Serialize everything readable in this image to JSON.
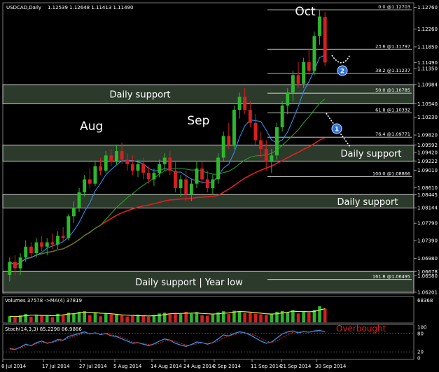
{
  "header": {
    "symbol_timeframe": "USDCAD,Daily",
    "ohlc": "1.12539 1.12648 1.11413 1.11490"
  },
  "colors": {
    "background": "#000000",
    "bull": "#2db82d",
    "bear": "#d62020",
    "zone_fill": "#2c3a2c",
    "zone_border": "#c9c9c9",
    "ma_slow": "#e02020",
    "ma_mid": "#22a022",
    "ma_fast": "#2f8fe8",
    "stoch_main": "#3d8ee8",
    "stoch_signal": "#e02020",
    "overbought": "#e02020",
    "grid": "#333333"
  },
  "chart_data": [
    {
      "type": "candlestick",
      "title": "",
      "ylim": [
        1.062,
        1.128
      ],
      "price_ticks": [
        "1.12760",
        "1.12260",
        "1.11850",
        "1.11490",
        "1.11350",
        "1.10984",
        "1.10540",
        "1.10230",
        "1.09820",
        "1.09592",
        "1.09420",
        "1.09222",
        "1.09010",
        "1.08610",
        "1.08445",
        "1.08144",
        "1.07790",
        "1.07390",
        "1.06980",
        "1.06678",
        "1.06580",
        "1.06201"
      ],
      "date_ticks": [
        "8 Jul 2014",
        "17 Jul 2014",
        "27 Jul 2014",
        "5 Aug 2014",
        "14 Aug 2014",
        "24 Aug 2014",
        "2 Sep 2014",
        "11 Sep 2014",
        "21 Sep 2014",
        "30 Sep 2014"
      ],
      "candles": [
        [
          1.066,
          1.07,
          1.0645,
          1.069
        ],
        [
          1.069,
          1.0705,
          1.066,
          1.0675
        ],
        [
          1.0675,
          1.071,
          1.066,
          1.07
        ],
        [
          1.07,
          1.074,
          1.069,
          1.0725
        ],
        [
          1.0725,
          1.0735,
          1.07,
          1.071
        ],
        [
          1.071,
          1.0745,
          1.07,
          1.0735
        ],
        [
          1.0735,
          1.075,
          1.0715,
          1.0725
        ],
        [
          1.0725,
          1.0745,
          1.0705,
          1.0735
        ],
        [
          1.0735,
          1.0755,
          1.072,
          1.073
        ],
        [
          1.073,
          1.076,
          1.072,
          1.075
        ],
        [
          1.075,
          1.077,
          1.0735,
          1.0745
        ],
        [
          1.0745,
          1.08,
          1.074,
          1.0795
        ],
        [
          1.0795,
          1.083,
          1.078,
          1.0815
        ],
        [
          1.0815,
          1.086,
          1.0805,
          1.085
        ],
        [
          1.085,
          1.089,
          1.084,
          1.088
        ],
        [
          1.088,
          1.0905,
          1.086,
          1.087
        ],
        [
          1.087,
          1.092,
          1.0865,
          1.091
        ],
        [
          1.091,
          1.093,
          1.089,
          1.09
        ],
        [
          1.09,
          1.0945,
          1.0895,
          1.0935
        ],
        [
          1.0935,
          1.095,
          1.091,
          1.092
        ],
        [
          1.092,
          1.096,
          1.0915,
          1.0945
        ],
        [
          1.0945,
          1.0965,
          1.0915,
          1.0925
        ],
        [
          1.0925,
          1.094,
          1.09,
          1.0915
        ],
        [
          1.0915,
          1.0935,
          1.089,
          1.09
        ],
        [
          1.09,
          1.0925,
          1.0885,
          1.0915
        ],
        [
          1.0915,
          1.093,
          1.088,
          1.0895
        ],
        [
          1.0895,
          1.091,
          1.087,
          1.088
        ],
        [
          1.088,
          1.0905,
          1.0865,
          1.0895
        ],
        [
          1.0895,
          1.0925,
          1.0885,
          1.0915
        ],
        [
          1.0915,
          1.094,
          1.09,
          1.093
        ],
        [
          1.093,
          1.0945,
          1.089,
          1.09
        ],
        [
          1.09,
          1.092,
          1.085,
          1.086
        ],
        [
          1.086,
          1.089,
          1.084,
          1.088
        ],
        [
          1.088,
          1.09,
          1.083,
          1.0845
        ],
        [
          1.0845,
          1.088,
          1.083,
          1.087
        ],
        [
          1.087,
          1.092,
          1.086,
          1.0905
        ],
        [
          1.0905,
          1.092,
          1.087,
          1.088
        ],
        [
          1.088,
          1.09,
          1.085,
          1.086
        ],
        [
          1.086,
          1.089,
          1.0845,
          1.088
        ],
        [
          1.088,
          1.094,
          1.087,
          1.093
        ],
        [
          1.093,
          1.099,
          1.092,
          1.098
        ],
        [
          1.098,
          1.101,
          1.095,
          1.096
        ],
        [
          1.096,
          1.105,
          1.095,
          1.104
        ],
        [
          1.104,
          1.108,
          1.102,
          1.107
        ],
        [
          1.107,
          1.109,
          1.103,
          1.104
        ],
        [
          1.104,
          1.106,
          1.1,
          1.101
        ],
        [
          1.101,
          1.103,
          1.096,
          1.097
        ],
        [
          1.097,
          1.099,
          1.093,
          1.095
        ],
        [
          1.095,
          1.097,
          1.09,
          1.092
        ],
        [
          1.092,
          1.095,
          1.0895,
          1.0935
        ],
        [
          1.0935,
          1.101,
          1.0925,
          1.1
        ],
        [
          1.1,
          1.106,
          1.099,
          1.105
        ],
        [
          1.105,
          1.109,
          1.103,
          1.108
        ],
        [
          1.108,
          1.113,
          1.106,
          1.112
        ],
        [
          1.112,
          1.115,
          1.109,
          1.11
        ],
        [
          1.11,
          1.116,
          1.109,
          1.115
        ],
        [
          1.115,
          1.118,
          1.112,
          1.113
        ],
        [
          1.113,
          1.122,
          1.112,
          1.121
        ],
        [
          1.121,
          1.127,
          1.119,
          1.1255
        ],
        [
          1.1254,
          1.1265,
          1.1141,
          1.1149
        ]
      ],
      "moving_averages": [
        {
          "label": "slow",
          "color_key": "ma_slow"
        },
        {
          "label": "mid",
          "color_key": "ma_mid"
        },
        {
          "label": "fast",
          "color_key": "ma_fast"
        }
      ],
      "fib_levels": [
        {
          "label": "0.0 @1.12703",
          "value": 1.12703
        },
        {
          "label": "23.6 @1.11797",
          "value": 1.11797
        },
        {
          "label": "38.2 @1.11237",
          "value": 1.11237
        },
        {
          "label": "50.0 @1.10785",
          "value": 1.10785
        },
        {
          "label": "61.8 @1.10332",
          "value": 1.10332
        },
        {
          "label": "76.4 @1.09771",
          "value": 1.09771
        },
        {
          "label": "100.0 @1.08866",
          "value": 1.08866
        },
        {
          "label": "161.8 @1.06495",
          "value": 1.06495
        }
      ],
      "zones": [
        {
          "label": "Daily support",
          "high": 1.1098,
          "low": 1.1054
        },
        {
          "label": "Daily support",
          "high": 1.0959,
          "low": 1.0922
        },
        {
          "label": "Daily support",
          "high": 1.0845,
          "low": 1.0814
        },
        {
          "label": "Daily support | Year low",
          "high": 1.0668,
          "low": 1.062
        }
      ],
      "month_labels": [
        {
          "label": "Aug",
          "index": 14
        },
        {
          "label": "Sep",
          "index": 34
        },
        {
          "label": "Oct",
          "index": 54
        }
      ],
      "scenario_markers": [
        "1",
        "2"
      ]
    },
    {
      "type": "bar",
      "title": "Volumes 37578 ->MA(4) 37819",
      "scale_label": "68368",
      "values": [
        22,
        18,
        25,
        30,
        20,
        28,
        24,
        26,
        19,
        31,
        27,
        35,
        33,
        38,
        40,
        26,
        36,
        22,
        34,
        29,
        30,
        25,
        21,
        23,
        28,
        24,
        20,
        27,
        32,
        35,
        29,
        34,
        30,
        38,
        31,
        37,
        26,
        24,
        28,
        36,
        40,
        30,
        42,
        39,
        33,
        35,
        31,
        29,
        27,
        30,
        38,
        41,
        36,
        44,
        32,
        40,
        35,
        45,
        58,
        50
      ],
      "ma_values": [
        22,
        21,
        22,
        24,
        26,
        26,
        25,
        25,
        24,
        25,
        27,
        30,
        31,
        34,
        37,
        36,
        35,
        33,
        32,
        31,
        29,
        27,
        26,
        25,
        24,
        24,
        23,
        24,
        25,
        28,
        31,
        32,
        32,
        33,
        33,
        34,
        32,
        31,
        30,
        31,
        33,
        34,
        37,
        39,
        38,
        37,
        35,
        33,
        31,
        30,
        31,
        34,
        36,
        40,
        39,
        39,
        38,
        39,
        45,
        49
      ],
      "ylim": [
        0,
        68368
      ]
    },
    {
      "type": "line",
      "title": "Stoch(14,3,3) 85.2298 86.9886",
      "annotation": "Overbought",
      "y_ticks": [
        "100",
        "80",
        "20",
        "0"
      ],
      "ylim": [
        0,
        100
      ],
      "series": [
        {
          "values": [
            30,
            28,
            35,
            45,
            40,
            50,
            55,
            48,
            52,
            60,
            58,
            70,
            75,
            80,
            85,
            78,
            82,
            76,
            80,
            72,
            70,
            62,
            55,
            48,
            50,
            45,
            40,
            46,
            55,
            62,
            58,
            48,
            42,
            38,
            44,
            52,
            50,
            45,
            50,
            62,
            75,
            72,
            80,
            85,
            82,
            75,
            65,
            55,
            48,
            52,
            65,
            78,
            85,
            88,
            82,
            86,
            84,
            88,
            90,
            85
          ]
        },
        {
          "values": [
            32,
            30,
            32,
            40,
            42,
            46,
            50,
            50,
            51,
            55,
            57,
            64,
            70,
            76,
            80,
            80,
            80,
            78,
            78,
            75,
            72,
            67,
            60,
            52,
            50,
            47,
            44,
            44,
            48,
            55,
            58,
            54,
            48,
            42,
            42,
            46,
            49,
            48,
            49,
            55,
            65,
            71,
            76,
            80,
            82,
            80,
            73,
            64,
            55,
            51,
            56,
            66,
            76,
            84,
            85,
            85,
            85,
            86,
            87,
            86
          ]
        }
      ]
    }
  ]
}
